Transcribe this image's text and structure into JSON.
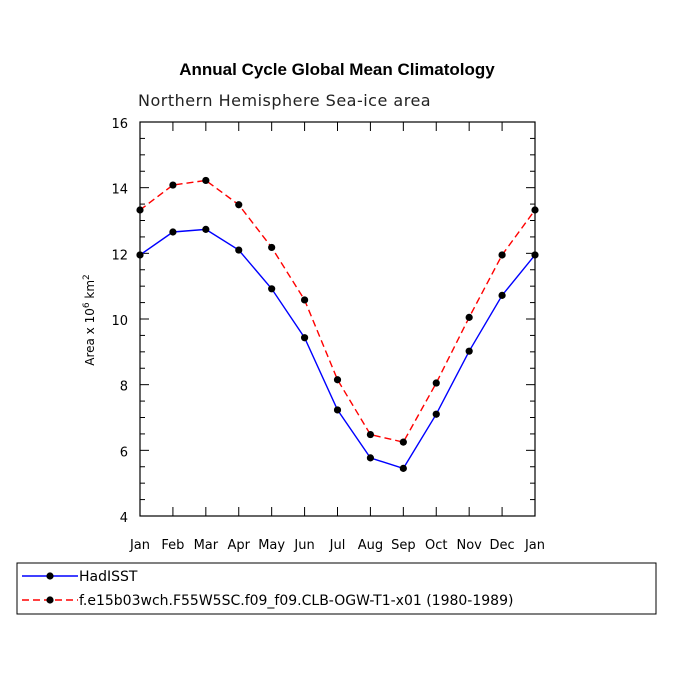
{
  "chart_data": {
    "type": "line",
    "title": "Annual Cycle Global Mean Climatology",
    "subtitle": "Northern Hemisphere Sea-ice area",
    "ylabel": {
      "prefix": "Area x 10",
      "exponent": "6",
      "unit_base": " km",
      "unit_exponent": "2"
    },
    "xlabel": "",
    "categories": [
      "Jan",
      "Feb",
      "Mar",
      "Apr",
      "May",
      "Jun",
      "Jul",
      "Aug",
      "Sep",
      "Oct",
      "Nov",
      "Dec",
      "Jan"
    ],
    "ylim": [
      4,
      16
    ],
    "yticks": [
      "4",
      "6",
      "8",
      "10",
      "12",
      "14",
      "16"
    ],
    "grid": false,
    "legend_position": "bottom",
    "series": [
      {
        "name": "HadISST",
        "color": "#0000ff",
        "dash": "solid",
        "values": [
          11.95,
          12.65,
          12.73,
          12.1,
          10.92,
          9.43,
          7.23,
          5.77,
          5.45,
          7.1,
          9.02,
          10.72,
          11.95
        ]
      },
      {
        "name": "f.e15b03wch.F55W5SC.f09_f09.CLB-OGW-T1-x01 (1980-1989)",
        "color": "#ff0000",
        "dash": "dashed",
        "values": [
          13.32,
          14.08,
          14.22,
          13.48,
          12.18,
          10.58,
          8.15,
          6.48,
          6.25,
          8.05,
          10.05,
          11.95,
          13.32
        ]
      }
    ]
  }
}
